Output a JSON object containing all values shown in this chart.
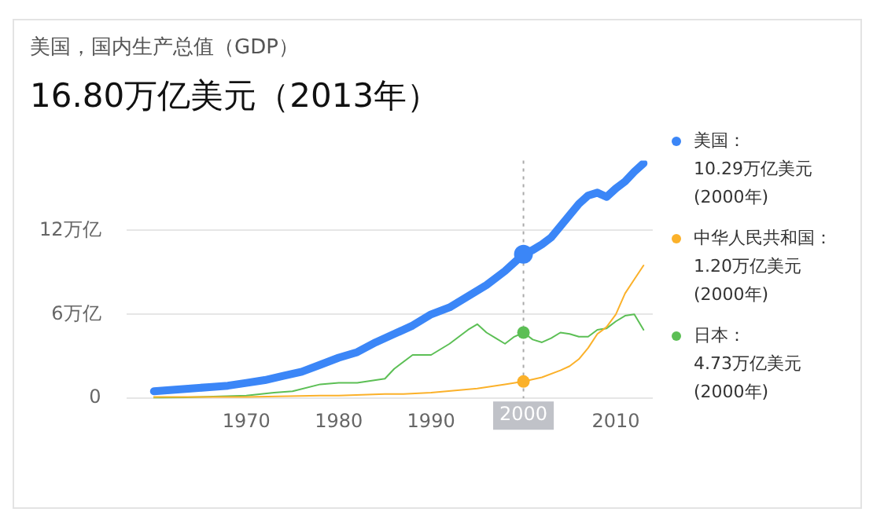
{
  "chart_data": {
    "type": "line",
    "title": "美国，国内生产总值（GDP）",
    "subtitle": "16.80万亿美元（2013年）",
    "xlim": [
      1957,
      2014
    ],
    "xticks": [
      1970,
      1980,
      1990,
      2010
    ],
    "ylim": [
      0,
      17
    ],
    "yticks": [
      0,
      {
        "value": 6,
        "label": "6万亿"
      },
      {
        "value": 12,
        "label": "12万亿"
      }
    ],
    "grid": "y",
    "legend": "right",
    "ref_lines": [
      {
        "axis": "x",
        "value": 2000,
        "label": "2000",
        "line_style": "dotted"
      }
    ],
    "annotations": [
      "10.29万亿美元 (2000年)",
      "1.20万亿美元 (2000年)",
      "4.73万亿美元 (2000年)"
    ],
    "series": [
      {
        "name": "美国：",
        "color": "#3b86f7",
        "x": [
          1960,
          1962,
          1964,
          1966,
          1968,
          1970,
          1972,
          1974,
          1976,
          1978,
          1980,
          1982,
          1984,
          1986,
          1988,
          1990,
          1992,
          1994,
          1996,
          1998,
          2000,
          2001,
          2002,
          2003,
          2004,
          2005,
          2006,
          2007,
          2008,
          2009,
          2010,
          2011,
          2012,
          2013
        ],
        "values": [
          0.5,
          0.6,
          0.7,
          0.8,
          0.9,
          1.1,
          1.3,
          1.6,
          1.9,
          2.4,
          2.9,
          3.3,
          4.0,
          4.6,
          5.2,
          6.0,
          6.5,
          7.3,
          8.1,
          9.1,
          10.3,
          10.6,
          11.0,
          11.5,
          12.3,
          13.1,
          13.9,
          14.5,
          14.7,
          14.4,
          15.0,
          15.5,
          16.2,
          16.8
        ]
      },
      {
        "name": "中华人民共和国：",
        "color": "#fbb12a",
        "x": [
          1960,
          1970,
          1978,
          1980,
          1985,
          1987,
          1990,
          1995,
          1998,
          2000,
          2002,
          2004,
          2005,
          2006,
          2007,
          2008,
          2009,
          2010,
          2011,
          2012,
          2013
        ],
        "values": [
          0.1,
          0.1,
          0.2,
          0.2,
          0.3,
          0.3,
          0.4,
          0.7,
          1.0,
          1.2,
          1.5,
          2.0,
          2.3,
          2.8,
          3.6,
          4.6,
          5.1,
          6.0,
          7.5,
          8.5,
          9.5
        ]
      },
      {
        "name": "日本：",
        "color": "#5cbf55",
        "x": [
          1960,
          1965,
          1970,
          1973,
          1975,
          1978,
          1980,
          1982,
          1985,
          1986,
          1988,
          1989,
          1990,
          1992,
          1994,
          1995,
          1996,
          1997,
          1998,
          1999,
          2000,
          2001,
          2002,
          2003,
          2004,
          2005,
          2006,
          2007,
          2008,
          2009,
          2010,
          2011,
          2012,
          2013
        ],
        "values": [
          0.0,
          0.1,
          0.2,
          0.4,
          0.5,
          1.0,
          1.1,
          1.1,
          1.4,
          2.1,
          3.1,
          3.1,
          3.1,
          3.9,
          4.9,
          5.3,
          4.7,
          4.3,
          3.9,
          4.4,
          4.7,
          4.2,
          4.0,
          4.3,
          4.7,
          4.6,
          4.4,
          4.4,
          4.9,
          5.0,
          5.5,
          5.9,
          6.0,
          4.9
        ]
      }
    ]
  }
}
